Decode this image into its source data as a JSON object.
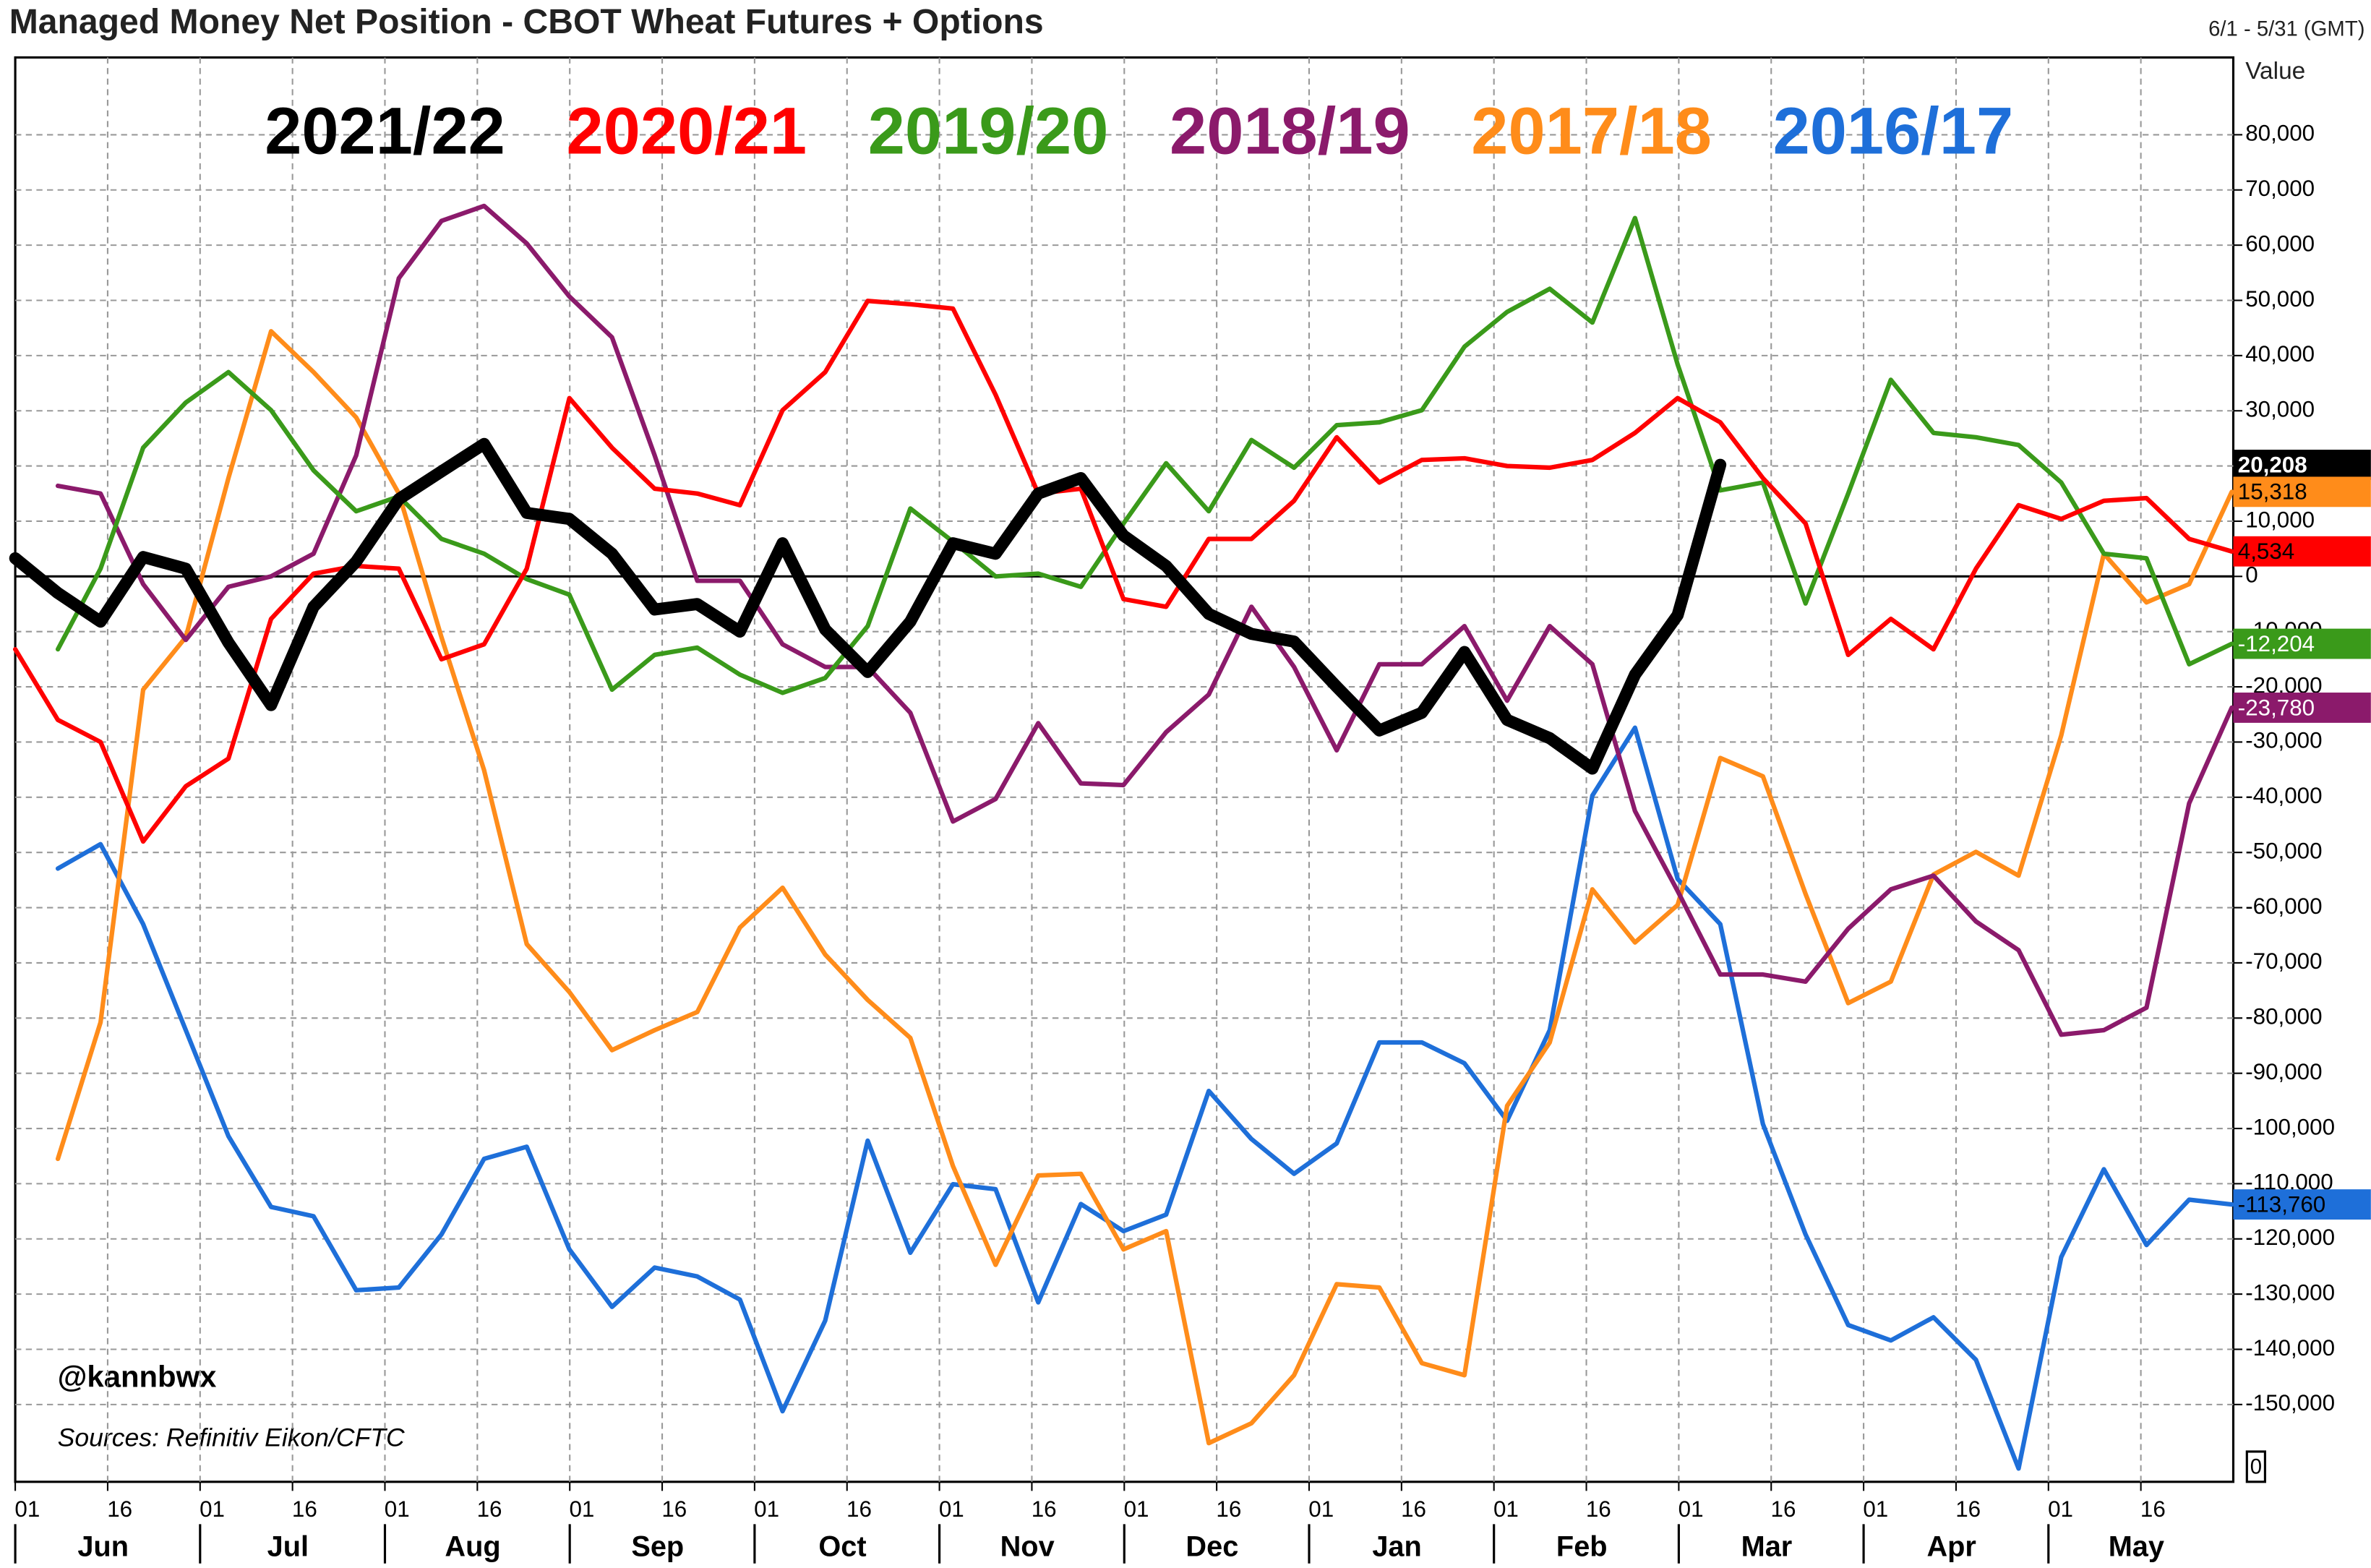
{
  "chart_data": {
    "type": "line",
    "title": "Managed Money Net Position - CBOT Wheat Futures + Options",
    "range_label": "6/1 - 5/31 (GMT)",
    "y_label": "Value",
    "annotations": [
      "@kannbwx",
      "Sources: Refinitiv Eikon/CFTC"
    ],
    "corner_label": "0",
    "months": [
      "Jun",
      "Jul",
      "Aug",
      "Sep",
      "Oct",
      "Nov",
      "Dec",
      "Jan",
      "Feb",
      "Mar",
      "Apr",
      "May"
    ],
    "month_days": [
      "01",
      "16"
    ],
    "categories": [
      null,
      null,
      null,
      null,
      null,
      null,
      null,
      null,
      null,
      null,
      null,
      null,
      null,
      null,
      null,
      null,
      null,
      null,
      null,
      null,
      null,
      null,
      null,
      null,
      null,
      null,
      null,
      null,
      null,
      null,
      null,
      null,
      null,
      null,
      null,
      null,
      null,
      null,
      null,
      null,
      null,
      null,
      null,
      null,
      null,
      null,
      null,
      null,
      null,
      null,
      null,
      null,
      null
    ],
    "ylim": [
      -164000,
      94000
    ],
    "yticks": [
      {
        "value": 80000,
        "label": "80,000"
      },
      {
        "value": 70000,
        "label": "70,000"
      },
      {
        "value": 60000,
        "label": "60,000"
      },
      {
        "value": 50000,
        "label": "50,000"
      },
      {
        "value": 40000,
        "label": "40,000"
      },
      {
        "value": 30000,
        "label": "30,000"
      },
      {
        "value": 20000,
        "label": "20,000"
      },
      {
        "value": 10000,
        "label": "10,000"
      },
      0,
      {
        "value": -10000,
        "label": "-10,000"
      },
      {
        "value": -20000,
        "label": "-20,000"
      },
      {
        "value": -30000,
        "label": "-30,000"
      },
      {
        "value": -40000,
        "label": "-40,000"
      },
      {
        "value": -50000,
        "label": "-50,000"
      },
      {
        "value": -60000,
        "label": "-60,000"
      },
      {
        "value": -70000,
        "label": "-70,000"
      },
      {
        "value": -80000,
        "label": "-80,000"
      },
      {
        "value": -90000,
        "label": "-90,000"
      },
      {
        "value": -100000,
        "label": "-100,000"
      },
      {
        "value": -110000,
        "label": "-110,000"
      },
      {
        "value": -120000,
        "label": "-120,000"
      },
      {
        "value": -130000,
        "label": "-130,000"
      },
      {
        "value": -140000,
        "label": "-140,000"
      },
      {
        "value": -150000,
        "label": "-150,000"
      }
    ],
    "grid": true,
    "series": [
      {
        "name": "2021/22",
        "color": "#000000",
        "last_label": "20,208",
        "values": [
          3300,
          -3000,
          -8200,
          3500,
          1400,
          -12000,
          -23300,
          -5500,
          2700,
          14000,
          19000,
          24000,
          11500,
          10400,
          4100,
          -6000,
          -5000,
          -10000,
          6000,
          -9600,
          -17300,
          -8200,
          6000,
          4100,
          15000,
          17800,
          7400,
          1900,
          -6800,
          -10400,
          -11800,
          -20000,
          -27900,
          -24700,
          -13700,
          -26000,
          -29300,
          -34800,
          -17800,
          -7000,
          20208,
          null,
          null,
          null,
          null,
          null,
          null,
          null,
          null,
          null,
          null,
          null,
          null
        ]
      },
      {
        "name": "2020/21",
        "color": "#ff0000",
        "last_label": "4,534",
        "values": [
          -13200,
          -26000,
          -30000,
          -48000,
          -38000,
          -33000,
          -7700,
          500,
          1900,
          1400,
          -15000,
          -12300,
          1400,
          32300,
          23300,
          15900,
          15000,
          12900,
          30100,
          37000,
          49900,
          49300,
          48500,
          32900,
          15000,
          15900,
          -4100,
          -5500,
          6800,
          6800,
          13700,
          25200,
          17000,
          21100,
          21400,
          20000,
          19700,
          21100,
          26000,
          32300,
          27900,
          17800,
          9600,
          -14200,
          -7700,
          -13200,
          1400,
          12900,
          10400,
          13700,
          14200,
          6800,
          4534
        ]
      },
      {
        "name": "2019/20",
        "color": "#3a9a1a",
        "last_label": "-12,204",
        "values": [
          null,
          -13200,
          1400,
          23300,
          31500,
          37000,
          30100,
          19200,
          11800,
          14500,
          6800,
          4100,
          -500,
          -3300,
          -20500,
          -14200,
          -12900,
          -17800,
          -21100,
          -18400,
          -9000,
          12300,
          6300,
          0,
          500,
          -1900,
          9600,
          20500,
          11800,
          24700,
          19700,
          27400,
          27900,
          30100,
          41600,
          47900,
          52100,
          46000,
          64900,
          38400,
          15600,
          17000,
          -4900,
          15000,
          35600,
          26000,
          25200,
          23800,
          17000,
          4100,
          3300,
          -15900,
          -12204
        ]
      },
      {
        "name": "2018/19",
        "color": "#8b1a6b",
        "last_label": "-23,780",
        "values": [
          null,
          16400,
          15000,
          -1400,
          -11500,
          -1900,
          0,
          4100,
          21900,
          54000,
          64400,
          67100,
          60300,
          50700,
          43300,
          21900,
          -800,
          -800,
          -12300,
          -16400,
          -16400,
          -24700,
          -44400,
          -40300,
          -26600,
          -37500,
          -37800,
          -28200,
          -21400,
          -5500,
          -16400,
          -31500,
          -15900,
          -15900,
          -9000,
          -22500,
          -9000,
          -15900,
          -42500,
          -57000,
          -72100,
          -72100,
          -73400,
          -63800,
          -56700,
          -54200,
          -62500,
          -67700,
          -83000,
          -82200,
          -78100,
          -41100,
          -23780
        ]
      },
      {
        "name": "2017/18",
        "color": "#ff8c1a",
        "last_label": "15,318",
        "values": [
          null,
          -105500,
          -80800,
          -20500,
          -11000,
          17800,
          44400,
          37000,
          28800,
          15000,
          -11000,
          -35100,
          -66600,
          -75300,
          -85800,
          -82200,
          -78900,
          -63600,
          -56400,
          -68500,
          -76700,
          -83600,
          -106800,
          -124700,
          -108500,
          -108200,
          -121900,
          -118600,
          -157000,
          -153400,
          -144700,
          -128200,
          -128800,
          -142500,
          -144700,
          -95900,
          -84400,
          -56700,
          -66300,
          -59500,
          -32900,
          -36200,
          -57500,
          -77300,
          -73400,
          -54000,
          -49900,
          -54200,
          -28800,
          4100,
          -4700,
          -1400,
          15318
        ]
      },
      {
        "name": "2016/17",
        "color": "#1e6fd9",
        "last_label": "-113,760",
        "values": [
          null,
          -52900,
          -48500,
          -63000,
          -82200,
          -101400,
          -114200,
          -115900,
          -129300,
          -128800,
          -119200,
          -105500,
          -103300,
          -121900,
          -132300,
          -125200,
          -126800,
          -131000,
          -151200,
          -134800,
          -102200,
          -122500,
          -110100,
          -111000,
          -131500,
          -113700,
          -118600,
          -115600,
          -93200,
          -101900,
          -108200,
          -102700,
          -84400,
          -84400,
          -88200,
          -98600,
          -82200,
          -39700,
          -27400,
          -54800,
          -63000,
          -99200,
          -119200,
          -135600,
          -138400,
          -134200,
          -141900,
          -161600,
          -123300,
          -107400,
          -121100,
          -112900,
          -113760
        ]
      }
    ]
  }
}
